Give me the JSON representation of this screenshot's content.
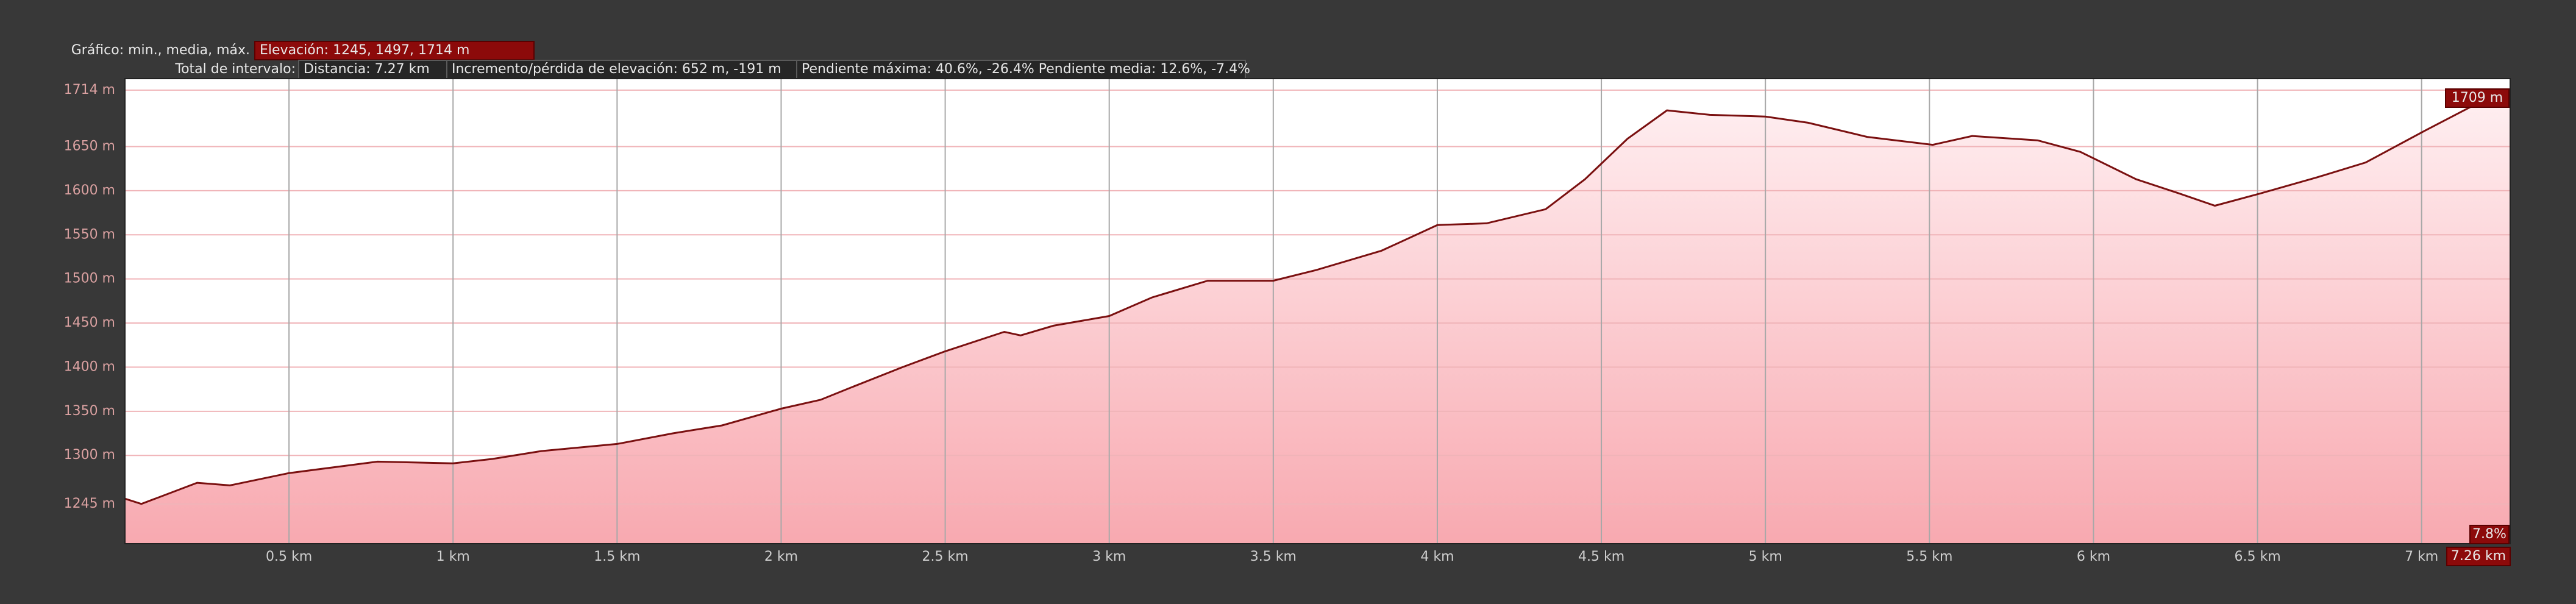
{
  "chart_data": {
    "type": "area",
    "header": {
      "graph_label": "Gráfico: min., media, máx.",
      "elevation": "Elevación: 1245, 1497, 1714 m",
      "total_label": "Total de intervalo:",
      "distance": "Distancia: 7.27 km",
      "gain_loss": "Incremento/pérdida de elevación: 652 m, -191 m",
      "grade": "Pendiente máxima: 40.6%, -26.4% Pendiente media: 12.6%, -7.4%"
    },
    "cursor": {
      "elevation": "1709 m",
      "grade": "7.8%",
      "distance": "7.26 km"
    },
    "x": [
      0,
      0.05,
      0.22,
      0.32,
      0.5,
      0.77,
      1.0,
      1.12,
      1.27,
      1.5,
      1.67,
      1.82,
      2.0,
      2.12,
      2.22,
      2.37,
      2.5,
      2.68,
      2.73,
      2.83,
      3.0,
      3.13,
      3.3,
      3.5,
      3.63,
      3.83,
      4.0,
      4.15,
      4.33,
      4.45,
      4.58,
      4.7,
      4.83,
      5.0,
      5.13,
      5.31,
      5.51,
      5.63,
      5.83,
      5.96,
      6.13,
      6.26,
      6.37,
      6.51,
      6.68,
      6.83,
      7.01,
      7.16,
      7.23,
      7.27
    ],
    "values": [
      1251,
      1245,
      1269,
      1266,
      1280,
      1293,
      1291,
      1296,
      1305,
      1313,
      1325,
      1334,
      1353,
      1363,
      1378,
      1400,
      1418,
      1440,
      1436,
      1447,
      1458,
      1479,
      1498,
      1498,
      1510,
      1532,
      1561,
      1563,
      1579,
      1613,
      1659,
      1691,
      1686,
      1684,
      1677,
      1661,
      1652,
      1662,
      1657,
      1644,
      1613,
      1597,
      1583,
      1597,
      1615,
      1632,
      1668,
      1697,
      1714,
      1709
    ],
    "color": "#7a1010",
    "fill": "#f8a9b0",
    "xlim": [
      0,
      7.27
    ],
    "ylim": [
      1200,
      1727
    ],
    "xticks": [
      {
        "value": 0.5,
        "label": "0.5 km"
      },
      {
        "value": 1,
        "label": "1 km"
      },
      {
        "value": 1.5,
        "label": "1.5 km"
      },
      {
        "value": 2,
        "label": "2 km"
      },
      {
        "value": 2.5,
        "label": "2.5 km"
      },
      {
        "value": 3,
        "label": "3 km"
      },
      {
        "value": 3.5,
        "label": "3.5 km"
      },
      {
        "value": 4,
        "label": "4 km"
      },
      {
        "value": 4.5,
        "label": "4.5 km"
      },
      {
        "value": 5,
        "label": "5 km"
      },
      {
        "value": 5.5,
        "label": "5.5 km"
      },
      {
        "value": 6,
        "label": "6 km"
      },
      {
        "value": 6.5,
        "label": "6.5 km"
      },
      {
        "value": 7,
        "label": "7 km"
      }
    ],
    "yticks": [
      {
        "value": 1245,
        "label": "1245 m"
      },
      {
        "value": 1300,
        "label": "1300 m"
      },
      {
        "value": 1350,
        "label": "1350 m"
      },
      {
        "value": 1400,
        "label": "1400 m"
      },
      {
        "value": 1450,
        "label": "1450 m"
      },
      {
        "value": 1500,
        "label": "1500 m"
      },
      {
        "value": 1550,
        "label": "1550 m"
      },
      {
        "value": 1600,
        "label": "1600 m"
      },
      {
        "value": 1650,
        "label": "1650 m"
      },
      {
        "value": 1714,
        "label": "1714 m"
      }
    ],
    "grid": true
  }
}
